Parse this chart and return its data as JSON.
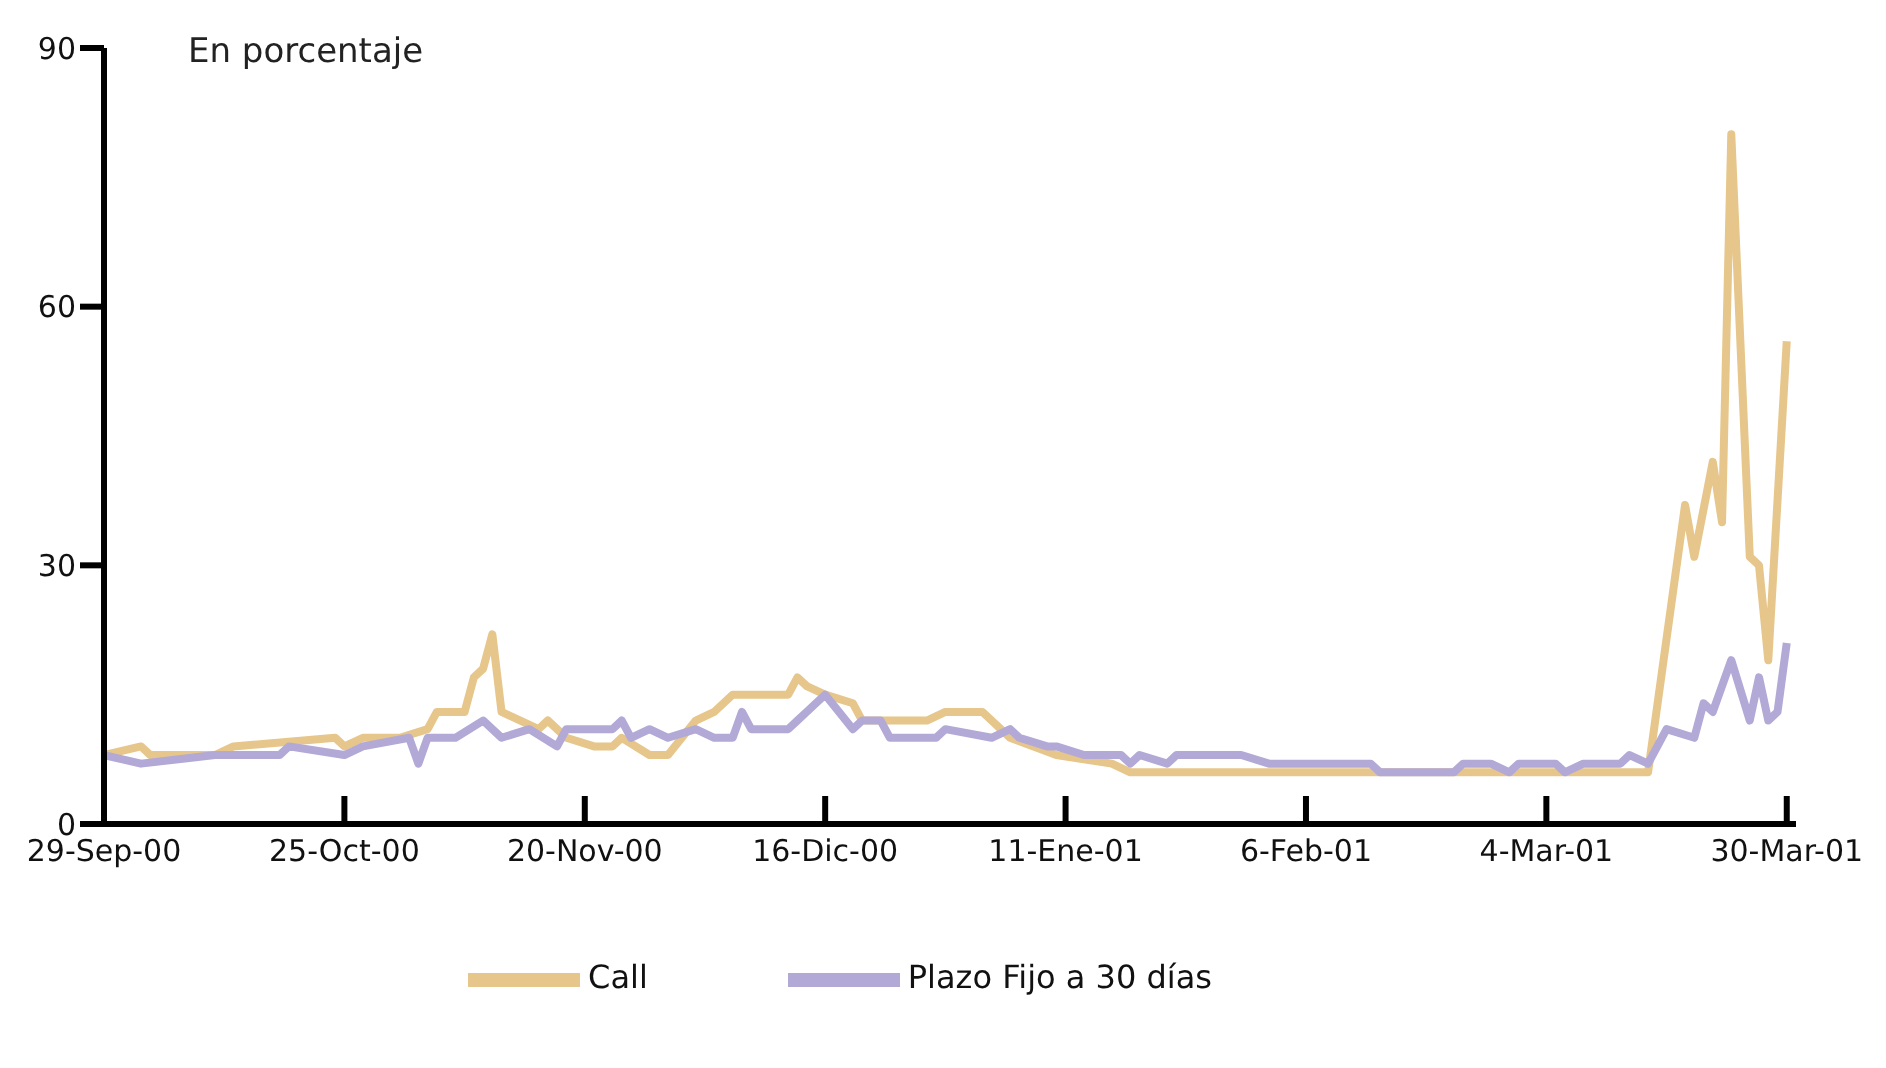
{
  "chart_data": {
    "type": "line",
    "ylabel": "En porcentaje",
    "xlim": [
      "2000-09-29",
      "2001-03-31"
    ],
    "xticks": [
      {
        "value": "2000-09-29",
        "label": "29-Sep-00"
      },
      {
        "value": "2000-10-25",
        "label": "25-Oct-00"
      },
      {
        "value": "2000-11-20",
        "label": "20-Nov-00"
      },
      {
        "value": "2000-12-16",
        "label": "16-Dic-00"
      },
      {
        "value": "2001-01-11",
        "label": "11-Ene-01"
      },
      {
        "value": "2001-02-06",
        "label": "6-Feb-01"
      },
      {
        "value": "2001-03-04",
        "label": "4-Mar-01"
      },
      {
        "value": "2001-03-30",
        "label": "30-Mar-01"
      }
    ],
    "ylim": [
      0,
      90
    ],
    "yticks": [
      0,
      30,
      60,
      90
    ],
    "grid": false,
    "legend": "bottom",
    "marker": "none",
    "line_style": "solid",
    "series": [
      {
        "name": "Call",
        "color": "#e6c68a",
        "x": [
          "2000-09-29",
          "2000-10-03",
          "2000-10-04",
          "2000-10-11",
          "2000-10-13",
          "2000-10-24",
          "2000-10-25",
          "2000-10-27",
          "2000-10-31",
          "2000-11-03",
          "2000-11-04",
          "2000-11-07",
          "2000-11-08",
          "2000-11-09",
          "2000-11-10",
          "2000-11-11",
          "2000-11-15",
          "2000-11-16",
          "2000-11-18",
          "2000-11-21",
          "2000-11-23",
          "2000-11-24",
          "2000-11-27",
          "2000-11-29",
          "2000-12-02",
          "2000-12-04",
          "2000-12-06",
          "2000-12-12",
          "2000-12-13",
          "2000-12-14",
          "2000-12-16",
          "2000-12-19",
          "2000-12-20",
          "2000-12-27",
          "2000-12-29",
          "2001-01-02",
          "2001-01-05",
          "2001-01-10",
          "2001-01-16",
          "2001-01-18",
          "2001-01-24",
          "2001-01-28",
          "2001-01-30",
          "2001-02-01",
          "2001-03-14",
          "2001-03-15",
          "2001-03-19",
          "2001-03-20",
          "2001-03-22",
          "2001-03-23",
          "2001-03-24",
          "2001-03-26",
          "2001-03-27",
          "2001-03-28",
          "2001-03-30"
        ],
        "values": [
          8,
          9,
          8,
          8,
          9,
          10,
          9,
          10,
          10,
          11,
          13,
          13,
          17,
          18,
          22,
          13,
          11,
          12,
          10,
          9,
          9,
          10,
          8,
          8,
          12,
          13,
          15,
          15,
          17,
          16,
          15,
          14,
          12,
          12,
          13,
          13,
          10,
          8,
          7,
          6,
          6,
          6,
          6,
          6,
          6,
          6,
          37,
          31,
          42,
          35,
          80,
          31,
          30,
          19,
          56
        ]
      },
      {
        "name": "Plazo Fijo a 30 días",
        "color": "#b3a9d6",
        "x": [
          "2000-09-29",
          "2000-10-03",
          "2000-10-11",
          "2000-10-12",
          "2000-10-13",
          "2000-10-18",
          "2000-10-19",
          "2000-10-25",
          "2000-10-27",
          "2000-11-01",
          "2000-11-02",
          "2000-11-03",
          "2000-11-06",
          "2000-11-09",
          "2000-11-11",
          "2000-11-14",
          "2000-11-17",
          "2000-11-18",
          "2000-11-20",
          "2000-11-22",
          "2000-11-23",
          "2000-11-24",
          "2000-11-25",
          "2000-11-27",
          "2000-11-29",
          "2000-12-02",
          "2000-12-04",
          "2000-12-06",
          "2000-12-07",
          "2000-12-08",
          "2000-12-12",
          "2000-12-13",
          "2000-12-14",
          "2000-12-16",
          "2000-12-19",
          "2000-12-20",
          "2000-12-22",
          "2000-12-23",
          "2000-12-28",
          "2000-12-29",
          "2001-01-03",
          "2001-01-05",
          "2001-01-06",
          "2001-01-09",
          "2001-01-10",
          "2001-01-13",
          "2001-01-17",
          "2001-01-18",
          "2001-01-19",
          "2001-01-22",
          "2001-01-23",
          "2001-01-25",
          "2001-01-27",
          "2001-01-28",
          "2001-01-30",
          "2001-02-02",
          "2001-02-06",
          "2001-02-07",
          "2001-02-13",
          "2001-02-14",
          "2001-02-22",
          "2001-02-23",
          "2001-02-26",
          "2001-02-28",
          "2001-03-01",
          "2001-03-05",
          "2001-03-06",
          "2001-03-08",
          "2001-03-12",
          "2001-03-13",
          "2001-03-15",
          "2001-03-17",
          "2001-03-20",
          "2001-03-21",
          "2001-03-22",
          "2001-03-24",
          "2001-03-26",
          "2001-03-27",
          "2001-03-28",
          "2001-03-29",
          "2001-03-30"
        ],
        "values": [
          8,
          7,
          8,
          8,
          8,
          8,
          9,
          8,
          9,
          10,
          7,
          10,
          10,
          12,
          10,
          11,
          9,
          11,
          11,
          11,
          11,
          12,
          10,
          11,
          10,
          11,
          10,
          10,
          13,
          11,
          11,
          12,
          13,
          15,
          11,
          12,
          12,
          10,
          10,
          11,
          10,
          11,
          10,
          9,
          9,
          8,
          8,
          7,
          8,
          7,
          8,
          8,
          8,
          8,
          8,
          7,
          7,
          7,
          7,
          6,
          6,
          7,
          7,
          6,
          7,
          7,
          6,
          7,
          7,
          8,
          7,
          11,
          10,
          14,
          13,
          19,
          12,
          17,
          12,
          13,
          21
        ]
      }
    ]
  }
}
